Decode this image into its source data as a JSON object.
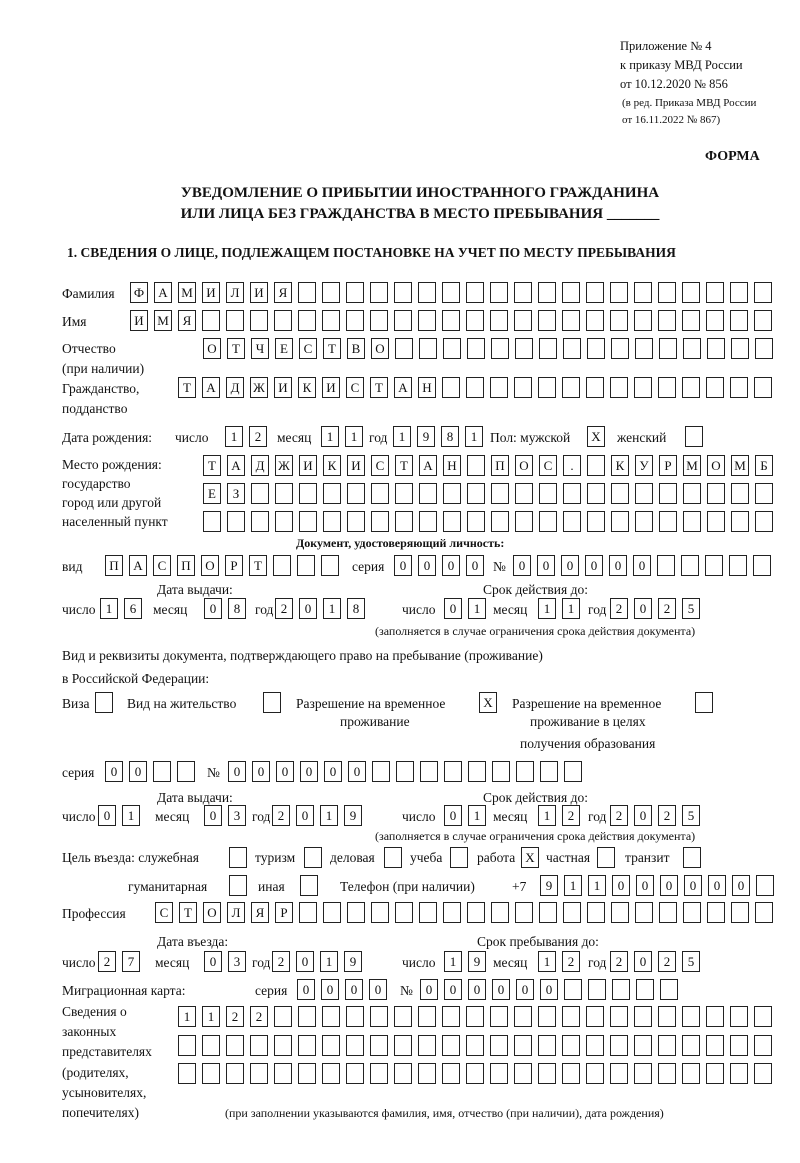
{
  "header": {
    "annex_lines": [
      "Приложение № 4",
      "к приказу МВД России",
      "от 10.12.2020 № 856"
    ],
    "edition_lines": [
      "(в ред. Приказа МВД России",
      "от 16.11.2022 № 867)"
    ],
    "form_label": "ФОРМА",
    "title_line1": "УВЕДОМЛЕНИЕ О ПРИБЫТИИ ИНОСТРАННОГО ГРАЖДАНИНА",
    "title_line2": "ИЛИ ЛИЦА БЕЗ ГРАЖДАНСТВА В МЕСТО ПРЕБЫВАНИЯ _______"
  },
  "section1": {
    "heading": "1. СВЕДЕНИЯ О ЛИЦЕ, ПОДЛЕЖАЩЕМ ПОСТАНОВКЕ НА УЧЕТ ПО МЕСТУ ПРЕБЫВАНИЯ",
    "labels": {
      "surname": "Фамилия",
      "name": "Имя",
      "patronymic": "Отчество",
      "patronymic_note": "(при наличии)",
      "citizenship1": "Гражданство,",
      "citizenship2": "подданство",
      "birth_date": "Дата рождения:",
      "day": "число",
      "month": "месяц",
      "year": "год",
      "sex_male": "Пол: мужской",
      "sex_female": "женский",
      "birthplace": [
        "Место рождения:",
        "государство",
        "город или другой",
        "населенный пункт"
      ],
      "id_doc_heading": "Документ, удостоверяющий личность:",
      "kind": "вид",
      "series": "серия",
      "number": "№",
      "issue_date": "Дата выдачи:",
      "valid_until": "Срок действия до:",
      "validity_note": "(заполняется в случае ограничения срока действия документа)",
      "right_doc_line1": "Вид и реквизиты документа, подтверждающего право на пребывание (проживание)",
      "right_doc_line2": "в Российской Федерации:",
      "visa": "Виза",
      "residence_permit": "Вид на жительство",
      "temp_permit": [
        "Разрешение на временное",
        "проживание"
      ],
      "temp_permit_edu": [
        "Разрешение на временное",
        "проживание в целях",
        "получения образования"
      ],
      "purpose": "Цель въезда: служебная",
      "tourism": "туризм",
      "business": "деловая",
      "study": "учеба",
      "work": "работа",
      "private": "частная",
      "transit": "транзит",
      "humanitarian": "гуманитарная",
      "other": "иная",
      "phone": "Телефон (при наличии)",
      "phone_prefix": "+7",
      "profession": "Профессия",
      "entry_date": "Дата въезда:",
      "stay_until": "Срок пребывания до:",
      "migration_card": "Миграционная карта:",
      "representatives": [
        "Сведения о",
        "законных",
        "представителях",
        "(родителях,",
        "усыновителях,",
        "попечителях)"
      ],
      "representatives_note": "(при заполнении указываются фамилия, имя, отчество (при наличии), дата рождения)"
    },
    "values": {
      "surname": "ФАМИЛИЯ",
      "name": "ИМЯ",
      "patronymic": "ОТЧЕСТВО",
      "citizenship": "ТАДЖИКИСТАН",
      "birth_day": "12",
      "birth_month": "11",
      "birth_year": "1981",
      "sex_male": "X",
      "sex_female": "",
      "birthplace_1": "ТАДЖИКИСТАН ПОС. КУРМОМБ",
      "birthplace_2": "ЕЗ",
      "birthplace_3": "",
      "id_kind": "ПАСПОРТ",
      "id_series": "0000",
      "id_number": "000000",
      "id_issue_day": "16",
      "id_issue_month": "08",
      "id_issue_year": "2018",
      "id_valid_day": "01",
      "id_valid_month": "11",
      "id_valid_year": "2025",
      "visa": "",
      "residence_permit": "",
      "temp_permit": "X",
      "temp_permit_edu": "",
      "right_series": "00",
      "right_number": "000000",
      "right_issue_day": "01",
      "right_issue_month": "03",
      "right_issue_year": "2019",
      "right_valid_day": "01",
      "right_valid_month": "12",
      "right_valid_year": "2025",
      "purpose_official": "",
      "purpose_tourism": "",
      "purpose_business": "",
      "purpose_study": "",
      "purpose_work": "X",
      "purpose_private": "",
      "purpose_transit": "",
      "purpose_humanitarian": "",
      "purpose_other": "",
      "phone": "911000000",
      "profession": "СТОЛЯР",
      "entry_day": "27",
      "entry_month": "03",
      "entry_year": "2019",
      "stay_day": "19",
      "stay_month": "12",
      "stay_year": "2025",
      "mc_series": "0000",
      "mc_number": "000000",
      "rep_1": "1122",
      "rep_2": "",
      "rep_3": ""
    }
  }
}
